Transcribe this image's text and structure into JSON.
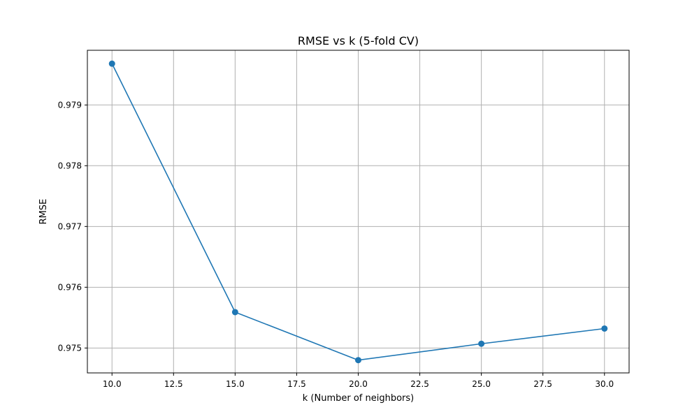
{
  "chart_data": {
    "type": "line",
    "title": "RMSE vs k (5-fold CV)",
    "xlabel": "k (Number of neighbors)",
    "ylabel": "RMSE",
    "xlim": [
      9.0,
      31.0
    ],
    "ylim": [
      0.97459,
      0.9799
    ],
    "xticks": [
      10.0,
      12.5,
      15.0,
      17.5,
      20.0,
      22.5,
      25.0,
      27.5,
      30.0
    ],
    "xtick_labels": [
      "10.0",
      "12.5",
      "15.0",
      "17.5",
      "20.0",
      "22.5",
      "25.0",
      "27.5",
      "30.0"
    ],
    "yticks": [
      0.975,
      0.976,
      0.977,
      0.978,
      0.979
    ],
    "ytick_labels": [
      "0.975",
      "0.976",
      "0.977",
      "0.978",
      "0.979"
    ],
    "grid": true,
    "series": [
      {
        "x": [
          10,
          15,
          20,
          25,
          30
        ],
        "values": [
          0.97968,
          0.97559,
          0.9748,
          0.97507,
          0.97532
        ],
        "color": "#1f77b4",
        "marker": "circle"
      }
    ]
  }
}
